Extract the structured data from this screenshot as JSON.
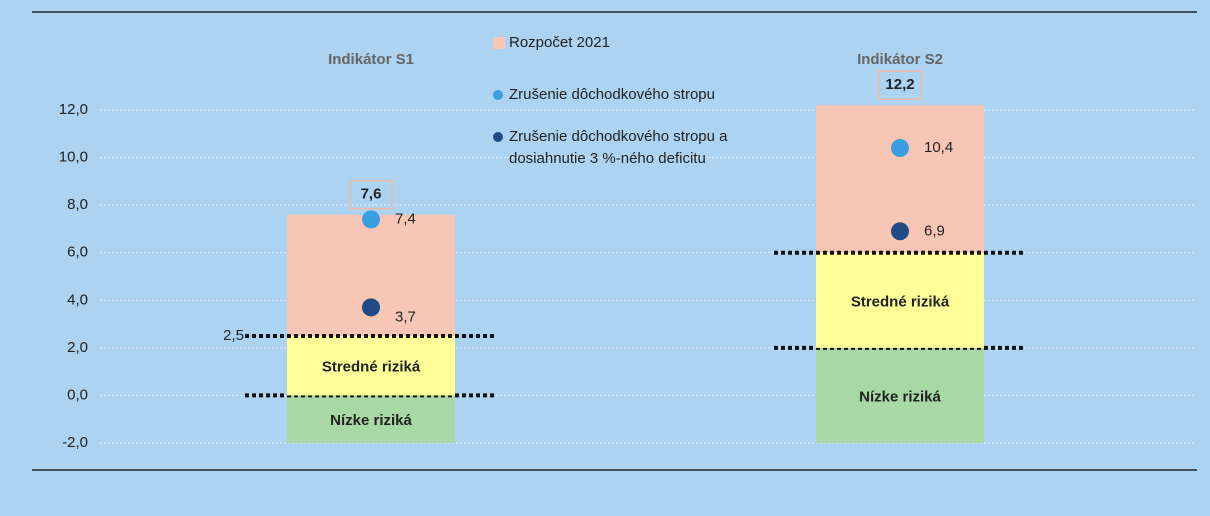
{
  "chart_data": {
    "type": "bar",
    "categories": [
      "Indikátor S1",
      "Indikátor S2"
    ],
    "ylim": [
      -2,
      12
    ],
    "yticks": [
      {
        "value": -2,
        "label": "-2,0"
      },
      {
        "value": 0,
        "label": "0,0"
      },
      {
        "value": 2,
        "label": "2,0"
      },
      {
        "value": 4,
        "label": "4,0"
      },
      {
        "value": 6,
        "label": "6,0"
      },
      {
        "value": 8,
        "label": "8,0"
      },
      {
        "value": 10,
        "label": "10,0"
      },
      {
        "value": 12,
        "label": "12,0"
      }
    ],
    "grid": true,
    "series": [
      {
        "name": "Rozpočet 2021",
        "kind": "bar",
        "color": "#f8c6b4",
        "values": [
          7.6,
          12.2
        ],
        "value_labels": [
          "7,6",
          "12,2"
        ]
      },
      {
        "name": "Zrušenie dôchodkového stropu",
        "kind": "dot",
        "color": "#3a9fe0",
        "values": [
          7.4,
          10.4
        ],
        "value_labels": [
          "7,4",
          "10,4"
        ]
      },
      {
        "name": "Zrušenie dôchodkového stropu a dosiahnutie 3 %-ného deficitu",
        "kind": "dot",
        "color": "#1f4a85",
        "values": [
          3.7,
          6.9
        ],
        "value_labels": [
          "3,7",
          "6,9"
        ]
      }
    ],
    "risk_zones": [
      {
        "name": "Nízke riziká",
        "color": "#a8d8a4",
        "bounds": [
          [
            -2,
            0
          ],
          [
            -2,
            2
          ]
        ]
      },
      {
        "name": "Stredné riziká",
        "color": "#ffff99",
        "bounds": [
          [
            0,
            2.5
          ],
          [
            2,
            6
          ]
        ]
      }
    ],
    "annotations": [
      {
        "text": "2,5",
        "value": 2.5
      }
    ]
  }
}
